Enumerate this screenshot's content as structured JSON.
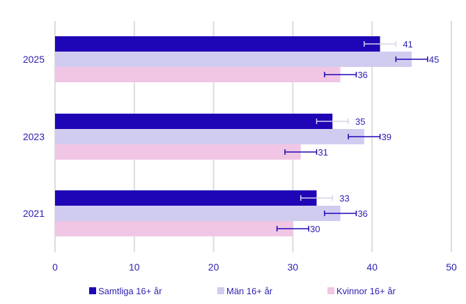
{
  "chart_data": {
    "type": "bar",
    "orientation": "horizontal",
    "title": "",
    "xlabel": "",
    "ylabel": "",
    "xlim": [
      0,
      50
    ],
    "xticks": [
      0,
      10,
      20,
      30,
      40,
      50
    ],
    "grid": true,
    "categories": [
      "2025",
      "2023",
      "2021"
    ],
    "series": [
      {
        "name": "Samtliga 16+ år",
        "color": "#1e05b5",
        "errcolor": "#d6d3ee",
        "values": [
          41,
          35,
          33
        ],
        "err_low": [
          39,
          33,
          31
        ],
        "err_high": [
          43,
          37,
          35
        ]
      },
      {
        "name": "Män 16+ år",
        "color": "#d0ccf0",
        "errcolor": "#1e05b5",
        "values": [
          45,
          39,
          36
        ],
        "err_low": [
          43,
          37,
          34
        ],
        "err_high": [
          47,
          41,
          38
        ]
      },
      {
        "name": "Kvinnor 16+ år",
        "color": "#f0c6e4",
        "errcolor": "#1e05b5",
        "values": [
          36,
          31,
          30
        ],
        "err_low": [
          34,
          29,
          28
        ],
        "err_high": [
          38,
          33,
          32
        ]
      }
    ],
    "legend_position": "bottom"
  }
}
